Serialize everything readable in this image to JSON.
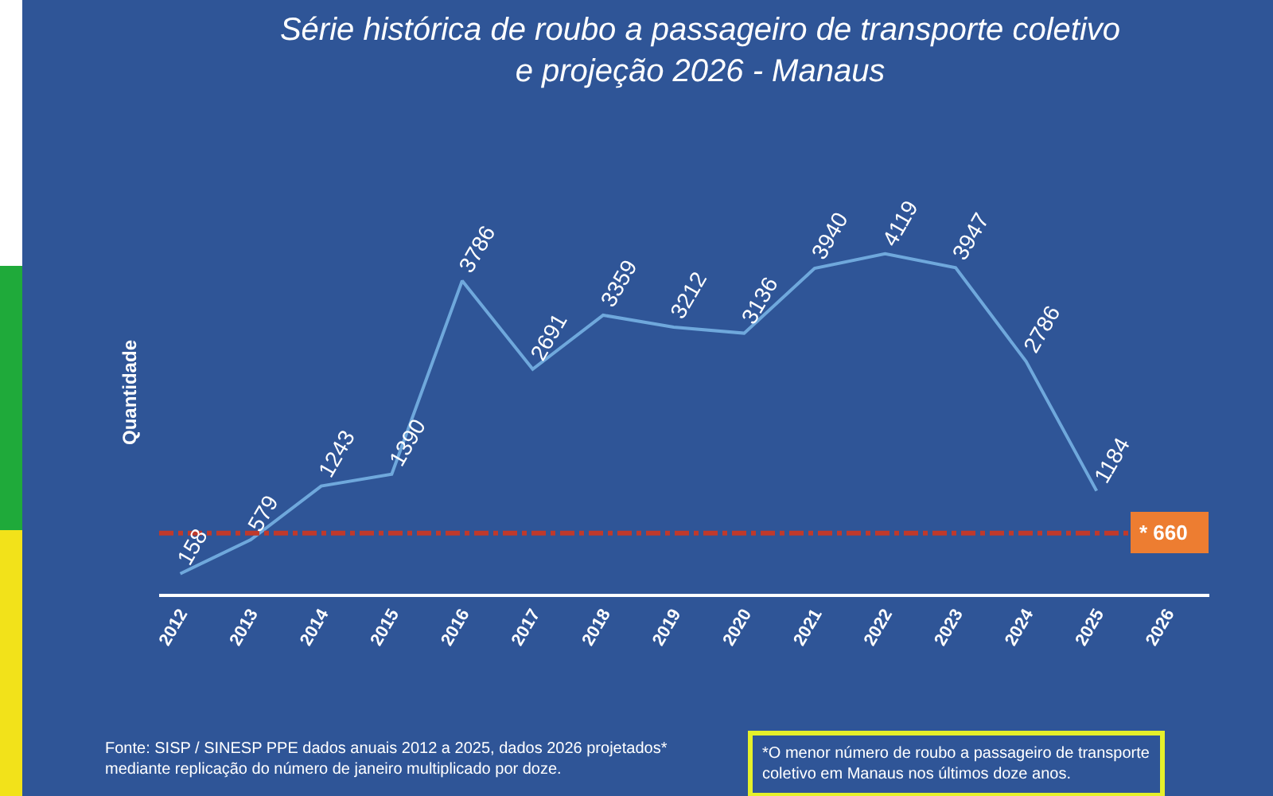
{
  "chart_data": {
    "type": "line",
    "title": "Série histórica de roubo a passageiro de transporte coletivo\ne projeção 2026 - Manaus",
    "ylabel": "Quantidade",
    "categories": [
      "2012",
      "2013",
      "2014",
      "2015",
      "2016",
      "2017",
      "2018",
      "2019",
      "2020",
      "2021",
      "2022",
      "2023",
      "2024",
      "2025",
      "2026"
    ],
    "values": [
      158,
      579,
      1243,
      1390,
      3786,
      2691,
      3359,
      3212,
      3136,
      3940,
      4119,
      3947,
      2786,
      1184,
      null
    ],
    "color": "#6fa8dc",
    "data_labels": true,
    "grid": false,
    "legend": false,
    "marker": "none",
    "line_style": "solid",
    "ref_lines": [
      {
        "axis": "y",
        "value": 660,
        "label": "* 660",
        "color": "#c0392b",
        "line_style": "dashdot"
      }
    ],
    "annotations": [
      "Fonte: SISP / SINESP PPE dados anuais 2012 a 2025, dados 2026 projetados*\nmediante replicação do número de janeiro multiplicado por doze.",
      "*O menor número de roubo a passageiro de transporte\ncoletivo em Manaus nos últimos doze anos."
    ]
  }
}
